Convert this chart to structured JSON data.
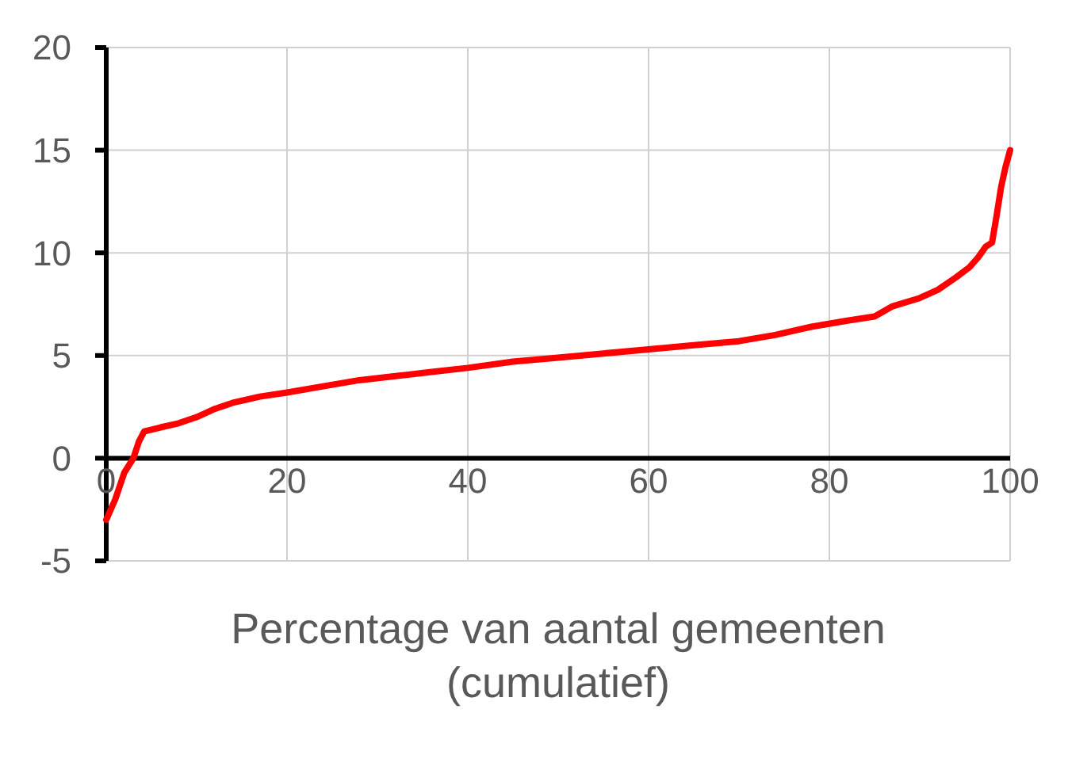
{
  "chart_data": {
    "type": "line",
    "xlabel": "Percentage van aantal gemeenten (cumulatief)",
    "xlim": [
      0,
      100
    ],
    "xticks": [
      0,
      20,
      40,
      60,
      80,
      100
    ],
    "ylim": [
      -5,
      20
    ],
    "yticks": [
      -5,
      0,
      5,
      10,
      15,
      20
    ],
    "grid": true,
    "marker": "none",
    "line_style": "solid",
    "series": [
      {
        "color": "#ff0000",
        "x": [
          0,
          1,
          2,
          3,
          3.6,
          4.2,
          6,
          8,
          10,
          12,
          14,
          17,
          20,
          24,
          28,
          32,
          36,
          40,
          45,
          50,
          55,
          60,
          65,
          70,
          74,
          78,
          82,
          85,
          87,
          90,
          92,
          94,
          95.5,
          96.5,
          97.3,
          98,
          98.5,
          99,
          99.5,
          100
        ],
        "values": [
          -3,
          -2,
          -0.7,
          0,
          0.8,
          1.3,
          1.5,
          1.7,
          2,
          2.4,
          2.7,
          3,
          3.2,
          3.5,
          3.8,
          4,
          4.2,
          4.4,
          4.7,
          4.9,
          5.1,
          5.3,
          5.5,
          5.7,
          6,
          6.4,
          6.7,
          6.9,
          7.4,
          7.8,
          8.2,
          8.8,
          9.3,
          9.8,
          10.3,
          10.5,
          11.8,
          13.2,
          14.2,
          15
        ]
      }
    ]
  }
}
